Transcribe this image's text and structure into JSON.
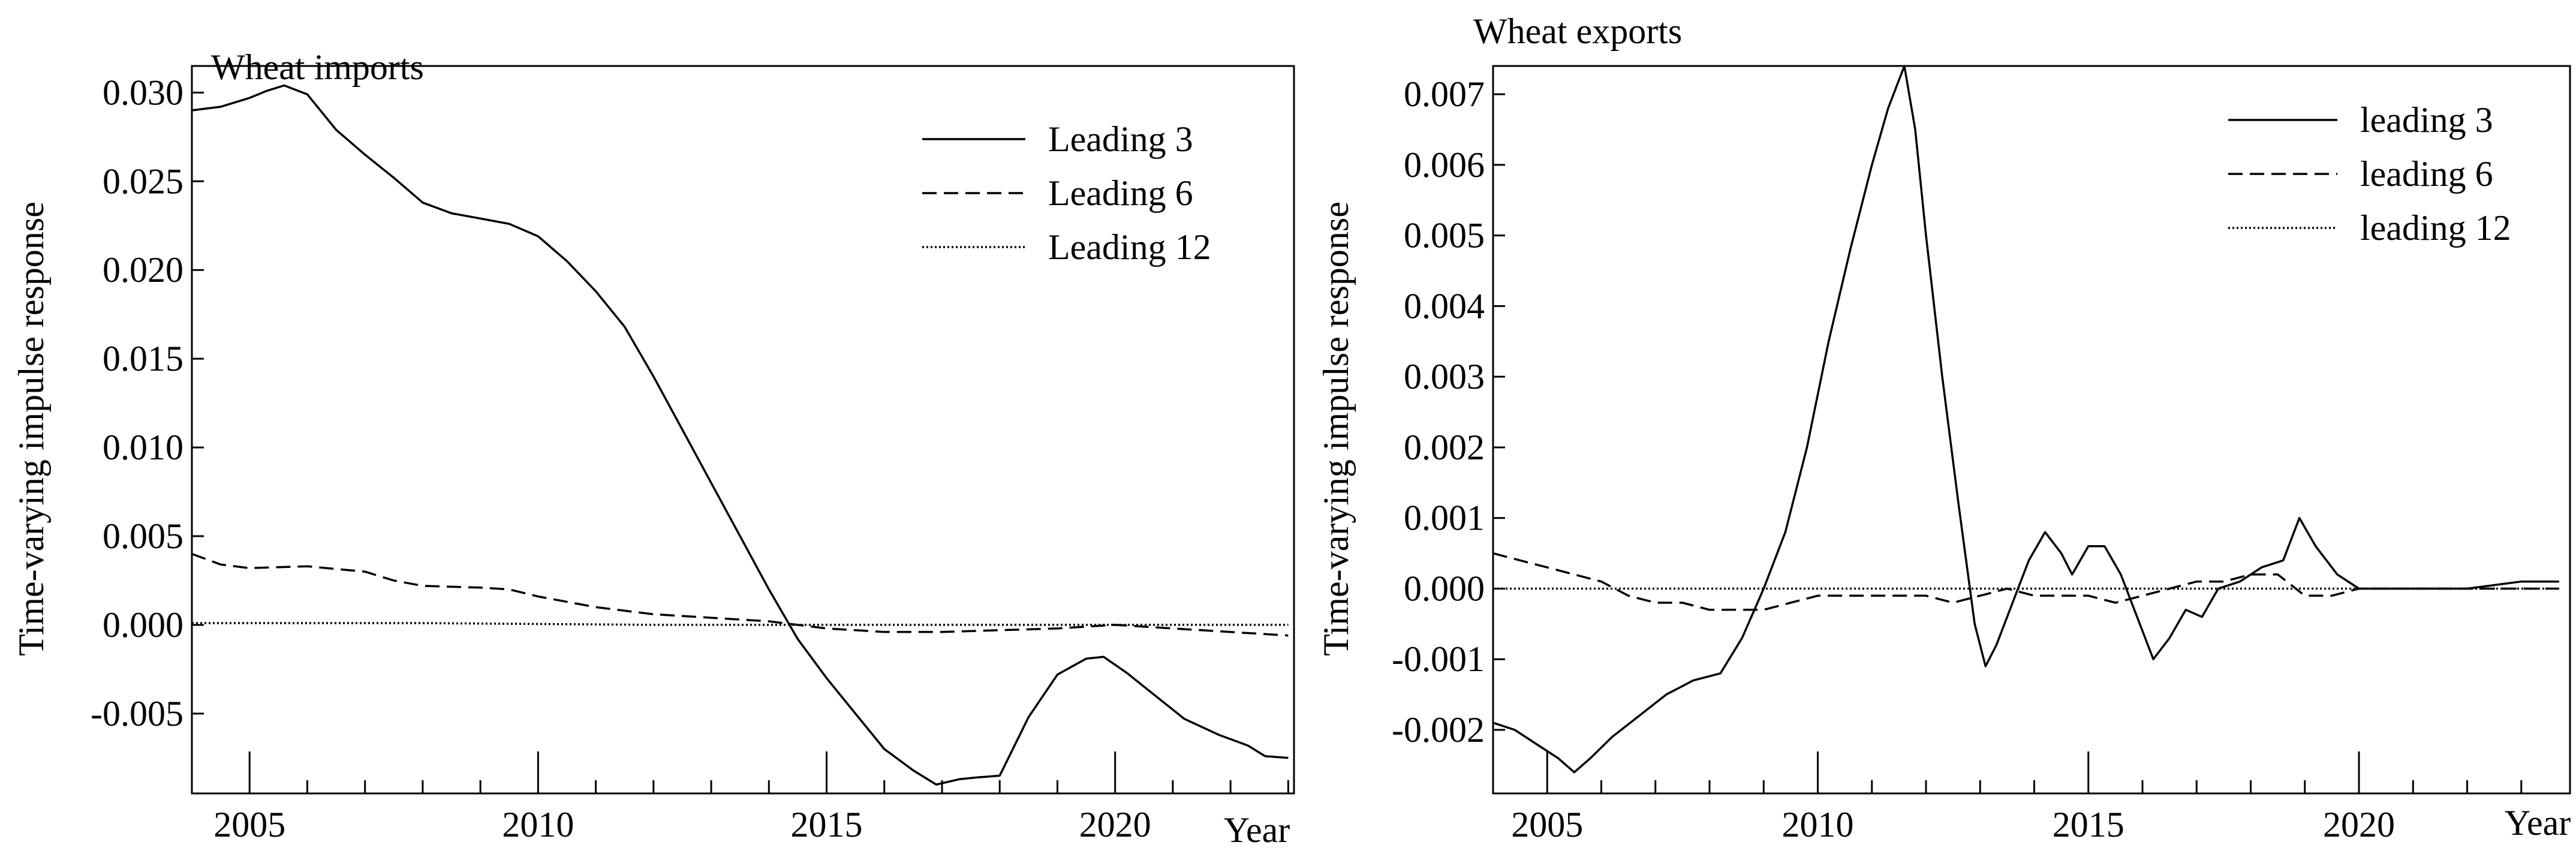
{
  "chart_data": [
    {
      "type": "line",
      "title": "Wheat imports",
      "ylabel": "Time-varying impulse response",
      "xlabel": "Year",
      "xlim": [
        2004.0,
        2023.1
      ],
      "ylim": [
        -0.0095,
        0.0315
      ],
      "yticks": [
        "0.030",
        "0.025",
        "0.020",
        "0.015",
        "0.010",
        "0.005",
        "0.000",
        "-0.005"
      ],
      "ytick_values": [
        0.03,
        0.025,
        0.02,
        0.015,
        0.01,
        0.005,
        0.0,
        -0.005
      ],
      "xticks": [
        "2005",
        "2010",
        "2015",
        "2020"
      ],
      "xtick_values": [
        2005,
        2010,
        2015,
        2020
      ],
      "legend_position": "top-right",
      "series": [
        {
          "name": "Leading 3",
          "style": "solid",
          "x": [
            2004.0,
            2004.5,
            2005.0,
            2005.3,
            2005.6,
            2006.0,
            2006.5,
            2007.0,
            2007.5,
            2008.0,
            2008.5,
            2009.0,
            2009.5,
            2010.0,
            2010.5,
            2011.0,
            2011.5,
            2012.0,
            2012.5,
            2013.0,
            2013.5,
            2014.0,
            2014.5,
            2015.0,
            2015.5,
            2016.0,
            2016.5,
            2016.9,
            2017.3,
            2017.6,
            2018.0,
            2018.5,
            2019.0,
            2019.5,
            2019.8,
            2020.2,
            2020.7,
            2021.2,
            2021.8,
            2022.3,
            2022.6,
            2023.0
          ],
          "y": [
            0.029,
            0.0292,
            0.0297,
            0.0301,
            0.0304,
            0.0299,
            0.0279,
            0.0265,
            0.0252,
            0.0238,
            0.0232,
            0.0229,
            0.0226,
            0.0219,
            0.0205,
            0.0188,
            0.0168,
            0.014,
            0.011,
            0.008,
            0.005,
            0.002,
            -0.0008,
            -0.003,
            -0.005,
            -0.007,
            -0.0082,
            -0.009,
            -0.0087,
            -0.0086,
            -0.0085,
            -0.0052,
            -0.0028,
            -0.0019,
            -0.0018,
            -0.0027,
            -0.004,
            -0.0053,
            -0.0062,
            -0.0068,
            -0.0074,
            -0.0075
          ]
        },
        {
          "name": "Leading 6",
          "style": "dashed",
          "x": [
            2004.0,
            2004.5,
            2005.0,
            2006.0,
            2007.0,
            2007.5,
            2008.0,
            2009.0,
            2009.5,
            2010.0,
            2011.0,
            2012.0,
            2013.0,
            2014.0,
            2015.0,
            2016.0,
            2017.0,
            2018.0,
            2019.0,
            2020.0,
            2021.0,
            2022.0,
            2023.0
          ],
          "y": [
            0.004,
            0.0034,
            0.0032,
            0.0033,
            0.003,
            0.0025,
            0.0022,
            0.0021,
            0.002,
            0.0016,
            0.001,
            0.0006,
            0.0004,
            0.0002,
            -0.0002,
            -0.0004,
            -0.0004,
            -0.0003,
            -0.0002,
            0.0,
            -0.0002,
            -0.0004,
            -0.0006
          ]
        },
        {
          "name": "Leading 12",
          "style": "dotted",
          "x": [
            2004.0,
            2008.0,
            2012.0,
            2016.0,
            2020.0,
            2023.0
          ],
          "y": [
            0.0001,
            0.0001,
            0.0,
            0.0,
            0.0,
            0.0
          ]
        }
      ]
    },
    {
      "type": "line",
      "title": "Wheat exports",
      "ylabel": "Time-varying impulse response",
      "xlabel": "Year",
      "xlim": [
        2004.0,
        2023.9
      ],
      "ylim": [
        -0.0029,
        0.0074
      ],
      "yticks": [
        "0.007",
        "0.006",
        "0.005",
        "0.004",
        "0.003",
        "0.002",
        "0.001",
        "0.000",
        "-0.001",
        "-0.002"
      ],
      "ytick_values": [
        0.007,
        0.006,
        0.005,
        0.004,
        0.003,
        0.002,
        0.001,
        0.0,
        -0.001,
        -0.002
      ],
      "xticks": [
        "2005",
        "2010",
        "2015",
        "2020"
      ],
      "xtick_values": [
        2005,
        2010,
        2015,
        2020
      ],
      "legend_position": "top-right",
      "series": [
        {
          "name": "leading 3",
          "style": "solid",
          "x": [
            2004.0,
            2004.4,
            2004.8,
            2005.2,
            2005.5,
            2005.8,
            2006.2,
            2006.7,
            2007.2,
            2007.7,
            2008.2,
            2008.6,
            2009.0,
            2009.4,
            2009.8,
            2010.2,
            2010.6,
            2011.0,
            2011.3,
            2011.6,
            2011.8,
            2012.0,
            2012.3,
            2012.6,
            2012.9,
            2013.1,
            2013.3,
            2013.6,
            2013.9,
            2014.2,
            2014.5,
            2014.7,
            2015.0,
            2015.3,
            2015.6,
            2015.9,
            2016.2,
            2016.5,
            2016.8,
            2017.1,
            2017.4,
            2017.8,
            2018.2,
            2018.6,
            2018.9,
            2019.2,
            2019.6,
            2020.0,
            2020.5,
            2021.0,
            2022.0,
            2023.0,
            2023.7
          ],
          "y": [
            -0.0019,
            -0.002,
            -0.0022,
            -0.0024,
            -0.0026,
            -0.0024,
            -0.0021,
            -0.0018,
            -0.0015,
            -0.0013,
            -0.0012,
            -0.0007,
            0.0,
            0.0008,
            0.002,
            0.0035,
            0.0048,
            0.006,
            0.0068,
            0.0074,
            0.0065,
            0.005,
            0.003,
            0.0012,
            -0.0005,
            -0.0011,
            -0.0008,
            -0.0002,
            0.0004,
            0.0008,
            0.0005,
            0.0002,
            0.0006,
            0.0006,
            0.0002,
            -0.0004,
            -0.001,
            -0.0007,
            -0.0003,
            -0.0004,
            0.0,
            0.0001,
            0.0003,
            0.0004,
            0.001,
            0.0006,
            0.0002,
            0.0,
            0.0,
            0.0,
            0.0,
            0.0001,
            0.0001
          ]
        },
        {
          "name": "leading 6",
          "style": "dashed",
          "x": [
            2004.0,
            2004.5,
            2005.0,
            2005.5,
            2006.0,
            2006.5,
            2007.0,
            2007.5,
            2008.0,
            2008.5,
            2009.0,
            2009.5,
            2010.0,
            2011.0,
            2012.0,
            2012.5,
            2013.0,
            2013.5,
            2014.0,
            2015.0,
            2015.5,
            2016.0,
            2016.5,
            2017.0,
            2017.5,
            2018.0,
            2018.5,
            2019.0,
            2019.5,
            2020.0,
            2021.0,
            2022.0,
            2023.0,
            2023.7
          ],
          "y": [
            0.0005,
            0.0004,
            0.0003,
            0.0002,
            0.0001,
            -0.0001,
            -0.0002,
            -0.0002,
            -0.0003,
            -0.0003,
            -0.0003,
            -0.0002,
            -0.0001,
            -0.0001,
            -0.0001,
            -0.0002,
            -0.0001,
            0.0,
            -0.0001,
            -0.0001,
            -0.0002,
            -0.0001,
            0.0,
            0.0001,
            0.0001,
            0.0002,
            0.0002,
            -0.0001,
            -0.0001,
            0.0,
            0.0,
            0.0,
            0.0,
            0.0
          ]
        },
        {
          "name": "leading 12",
          "style": "dotted",
          "x": [
            2004.0,
            2008.0,
            2012.0,
            2016.0,
            2020.0,
            2023.7
          ],
          "y": [
            0.0,
            0.0,
            0.0,
            0.0,
            0.0,
            0.0
          ]
        }
      ]
    }
  ]
}
